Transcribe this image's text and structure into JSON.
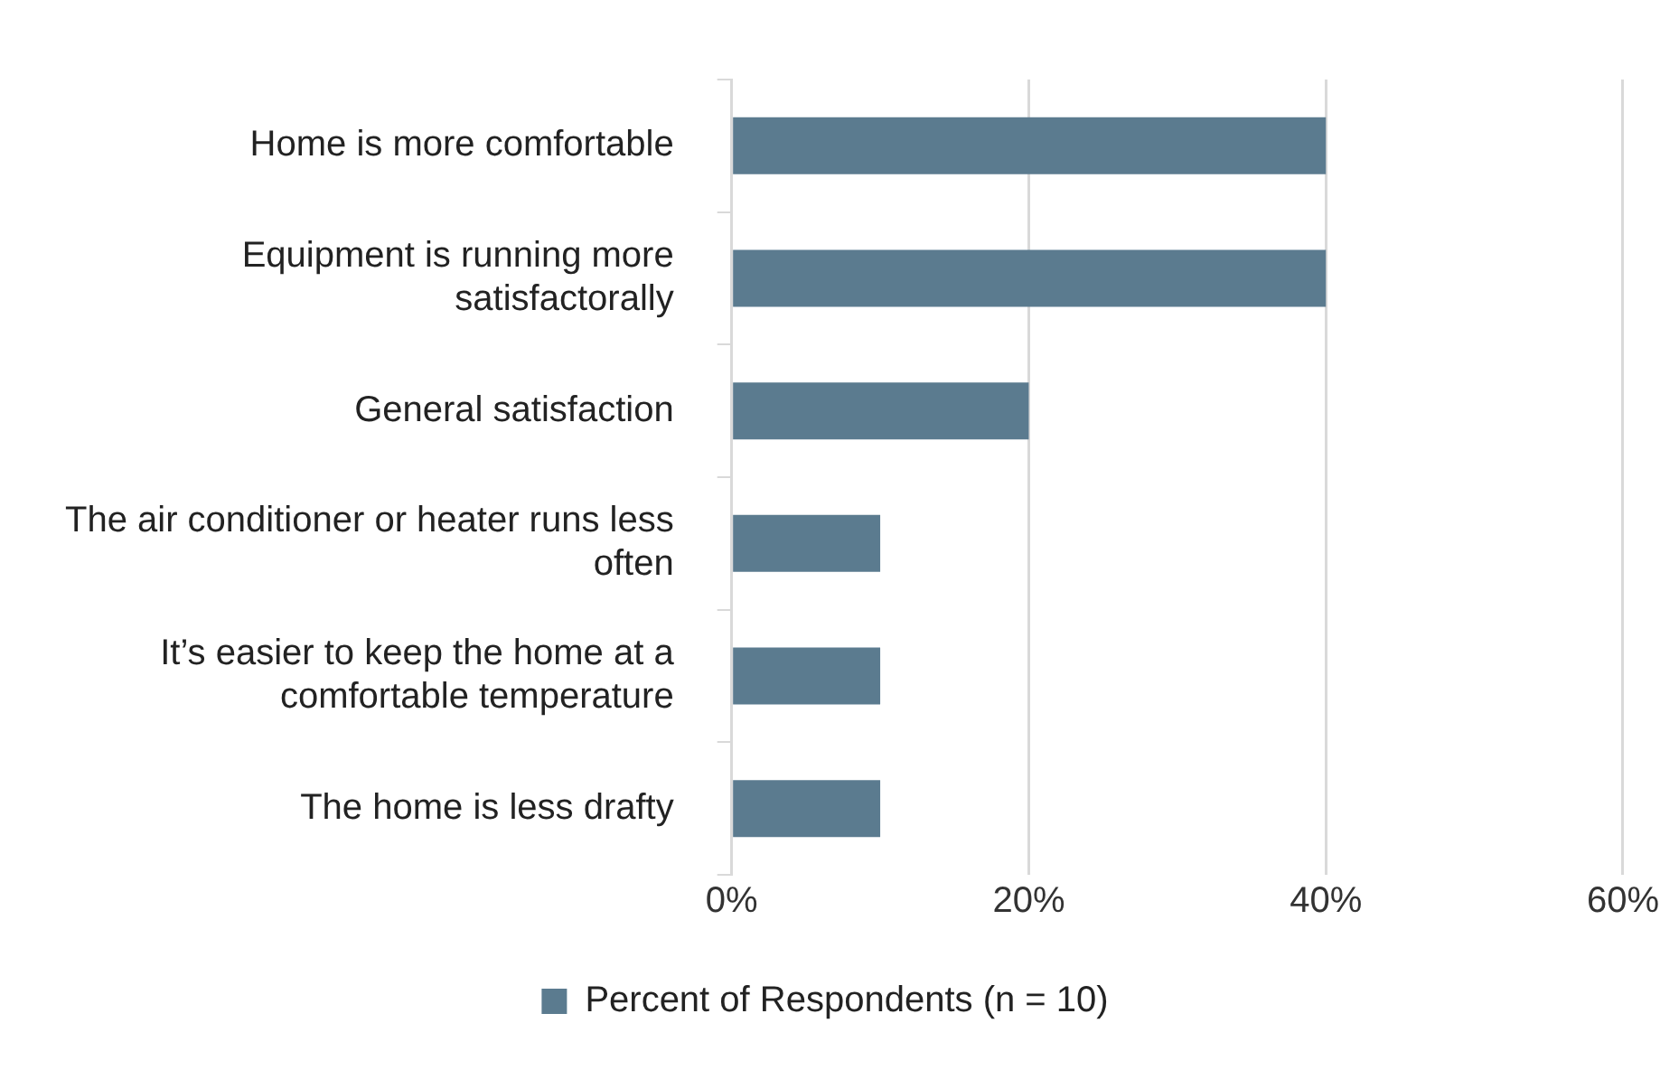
{
  "chart_data": {
    "type": "bar",
    "orientation": "horizontal",
    "categories": [
      "Home is more comfortable",
      "Equipment is running more satisfactorally",
      "General satisfaction",
      "The air conditioner or heater runs less often",
      "It’s easier to keep the home at a comfortable temperature",
      "The home is less drafty"
    ],
    "series": [
      {
        "name": "Percent of Respondents (n = 10)",
        "color": "#5b7b8f",
        "values": [
          40,
          40,
          20,
          10,
          10,
          10
        ]
      }
    ],
    "xlim": [
      0,
      60
    ],
    "xticks": [
      {
        "value": 0,
        "label": "0%"
      },
      {
        "value": 20,
        "label": "20%"
      },
      {
        "value": 40,
        "label": "40%"
      },
      {
        "value": 60,
        "label": "60%"
      }
    ],
    "grid": "x",
    "legend": "bottom"
  }
}
